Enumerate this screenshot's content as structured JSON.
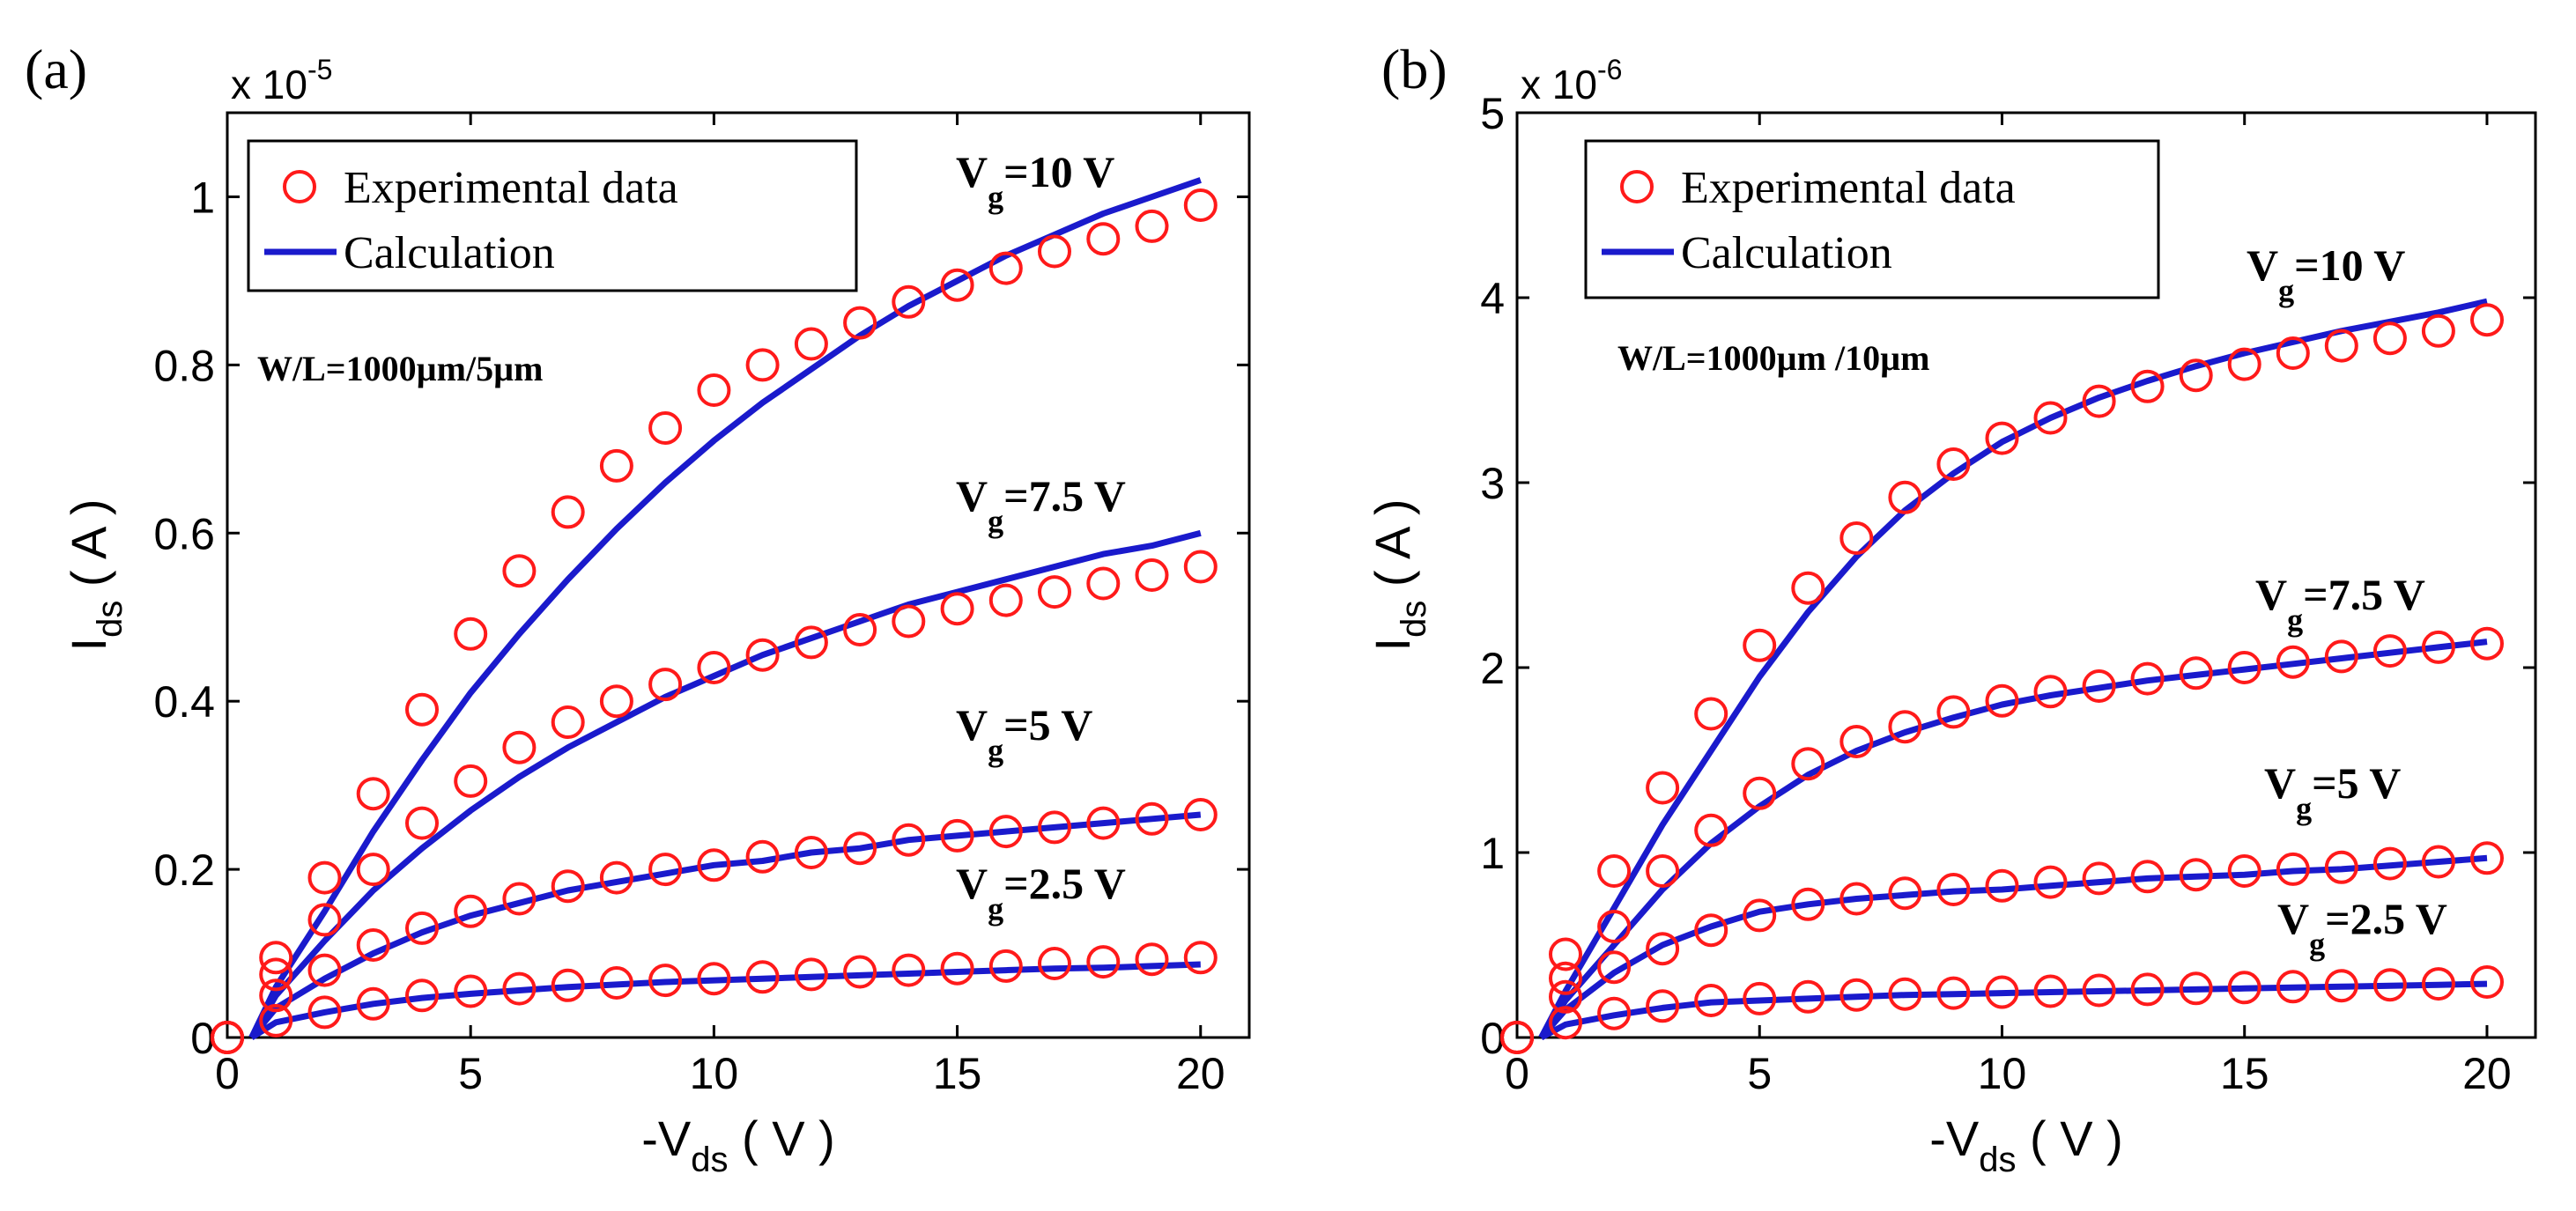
{
  "chart_data": [
    {
      "type": "scatter+line",
      "panel_label": "(a)",
      "ylabel": "I",
      "ylabel_sub": "ds",
      "ylabel_unit": " ( A )",
      "xlabel": "-V",
      "xlabel_sub": "ds",
      "xlabel_unit": " ( V )",
      "y_exponent_base": "x 10",
      "y_exponent_power": "-5",
      "xlim": [
        0,
        21
      ],
      "ylim": [
        0,
        1.1
      ],
      "xticks": [
        0,
        5,
        10,
        15,
        20
      ],
      "xtick_labels": [
        "0",
        "5",
        "10",
        "15",
        "20"
      ],
      "yticks": [
        0,
        0.2,
        0.4,
        0.6,
        0.8,
        1
      ],
      "ytick_labels": [
        "0",
        "0.2",
        "0.4",
        "0.6",
        "0.8",
        "1"
      ],
      "legend": {
        "position": "top-left",
        "entries": [
          "Experimental data",
          "Calculation"
        ]
      },
      "annotation": "W/L=1000µm/5µm",
      "colors": {
        "experimental": "#ff1a1a",
        "calculation": "#1a1acc"
      },
      "x": [
        0,
        1,
        2,
        3,
        4,
        5,
        6,
        7,
        8,
        9,
        10,
        11,
        12,
        13,
        14,
        15,
        16,
        17,
        18,
        19,
        20
      ],
      "series": [
        {
          "name": "Vg=10 V",
          "label_main": "V",
          "label_sub": "g",
          "label_rest": "=10 V",
          "experimental": [
            0,
            0.095,
            0.19,
            0.29,
            0.39,
            0.48,
            0.555,
            0.625,
            0.68,
            0.725,
            0.77,
            0.8,
            0.825,
            0.85,
            0.875,
            0.895,
            0.915,
            0.935,
            0.95,
            0.965,
            0.99
          ],
          "calculation_x": [
            0.5,
            1,
            2,
            3,
            4,
            5,
            6,
            7,
            8,
            9,
            10,
            11,
            12,
            13,
            14,
            15,
            16,
            17,
            18,
            19,
            20
          ],
          "calculation": [
            0,
            0.06,
            0.15,
            0.245,
            0.33,
            0.41,
            0.48,
            0.545,
            0.605,
            0.66,
            0.71,
            0.755,
            0.795,
            0.835,
            0.87,
            0.9,
            0.93,
            0.955,
            0.98,
            1.0,
            1.02
          ]
        },
        {
          "name": "Vg=7.5 V",
          "label_main": "V",
          "label_sub": "g",
          "label_rest": "=7.5 V",
          "experimental": [
            0,
            0.075,
            0.14,
            0.2,
            0.255,
            0.305,
            0.345,
            0.375,
            0.4,
            0.42,
            0.44,
            0.455,
            0.47,
            0.485,
            0.495,
            0.51,
            0.52,
            0.53,
            0.54,
            0.55,
            0.56
          ],
          "calculation_x": [
            0.5,
            1,
            2,
            3,
            4,
            5,
            6,
            7,
            8,
            9,
            10,
            11,
            12,
            13,
            14,
            15,
            16,
            17,
            18,
            19,
            20
          ],
          "calculation": [
            0,
            0.05,
            0.115,
            0.175,
            0.225,
            0.27,
            0.31,
            0.345,
            0.375,
            0.405,
            0.43,
            0.455,
            0.475,
            0.495,
            0.515,
            0.53,
            0.545,
            0.56,
            0.575,
            0.585,
            0.6
          ]
        },
        {
          "name": "Vg=5 V",
          "label_main": "V",
          "label_sub": "g",
          "label_rest": "=5 V",
          "experimental": [
            0,
            0.05,
            0.08,
            0.11,
            0.13,
            0.15,
            0.165,
            0.18,
            0.19,
            0.2,
            0.205,
            0.215,
            0.22,
            0.225,
            0.235,
            0.24,
            0.245,
            0.25,
            0.255,
            0.26,
            0.265
          ],
          "calculation_x": [
            0.5,
            1,
            2,
            3,
            4,
            5,
            6,
            7,
            8,
            9,
            10,
            11,
            12,
            13,
            14,
            15,
            16,
            17,
            18,
            19,
            20
          ],
          "calculation": [
            0,
            0.035,
            0.07,
            0.1,
            0.125,
            0.145,
            0.16,
            0.175,
            0.185,
            0.195,
            0.205,
            0.21,
            0.22,
            0.225,
            0.235,
            0.24,
            0.245,
            0.25,
            0.255,
            0.26,
            0.265
          ]
        },
        {
          "name": "Vg=2.5 V",
          "label_main": "V",
          "label_sub": "g",
          "label_rest": "=2.5 V",
          "experimental": [
            0,
            0.02,
            0.03,
            0.04,
            0.05,
            0.055,
            0.058,
            0.062,
            0.065,
            0.068,
            0.07,
            0.072,
            0.075,
            0.078,
            0.08,
            0.082,
            0.085,
            0.088,
            0.09,
            0.093,
            0.095
          ],
          "calculation_x": [
            0.5,
            1,
            2,
            3,
            4,
            5,
            6,
            7,
            8,
            9,
            10,
            11,
            12,
            13,
            14,
            15,
            16,
            17,
            18,
            19,
            20
          ],
          "calculation": [
            0,
            0.018,
            0.03,
            0.04,
            0.047,
            0.052,
            0.056,
            0.06,
            0.063,
            0.066,
            0.068,
            0.07,
            0.072,
            0.074,
            0.076,
            0.078,
            0.08,
            0.082,
            0.083,
            0.085,
            0.087
          ]
        }
      ]
    },
    {
      "type": "scatter+line",
      "panel_label": "(b)",
      "ylabel": "I",
      "ylabel_sub": "ds",
      "ylabel_unit": " ( A )",
      "xlabel": "-V",
      "xlabel_sub": "ds",
      "xlabel_unit": " ( V )",
      "y_exponent_base": "x 10",
      "y_exponent_power": "-6",
      "xlim": [
        0,
        21
      ],
      "ylim": [
        0,
        5
      ],
      "xticks": [
        0,
        5,
        10,
        15,
        20
      ],
      "xtick_labels": [
        "0",
        "5",
        "10",
        "15",
        "20"
      ],
      "yticks": [
        0,
        1,
        2,
        3,
        4,
        5
      ],
      "ytick_labels": [
        "0",
        "1",
        "2",
        "3",
        "4",
        "5"
      ],
      "legend": {
        "position": "top-left",
        "entries": [
          "Experimental data",
          "Calculation"
        ]
      },
      "annotation": "W/L=1000µm /10µm",
      "colors": {
        "experimental": "#ff1a1a",
        "calculation": "#1a1acc"
      },
      "x": [
        0,
        1,
        2,
        3,
        4,
        5,
        6,
        7,
        8,
        9,
        10,
        11,
        12,
        13,
        14,
        15,
        16,
        17,
        18,
        19,
        20
      ],
      "series": [
        {
          "name": "Vg=10 V",
          "label_main": "V",
          "label_sub": "g",
          "label_rest": "=10 V",
          "experimental": [
            0,
            0.45,
            0.9,
            1.35,
            1.75,
            2.12,
            2.43,
            2.7,
            2.92,
            3.1,
            3.24,
            3.35,
            3.44,
            3.52,
            3.58,
            3.64,
            3.7,
            3.74,
            3.78,
            3.82,
            3.88
          ],
          "calculation_x": [
            0.5,
            1,
            2,
            3,
            4,
            5,
            6,
            7,
            8,
            9,
            10,
            11,
            12,
            13,
            14,
            15,
            16,
            17,
            18,
            19,
            20
          ],
          "calculation": [
            0,
            0.25,
            0.7,
            1.15,
            1.55,
            1.95,
            2.3,
            2.6,
            2.85,
            3.05,
            3.22,
            3.35,
            3.46,
            3.55,
            3.63,
            3.7,
            3.76,
            3.82,
            3.87,
            3.92,
            3.98
          ]
        },
        {
          "name": "Vg=7.5 V",
          "label_main": "V",
          "label_sub": "g",
          "label_rest": "=7.5 V",
          "experimental": [
            0,
            0.32,
            0.6,
            0.9,
            1.12,
            1.32,
            1.48,
            1.6,
            1.68,
            1.76,
            1.82,
            1.87,
            1.9,
            1.94,
            1.97,
            2.0,
            2.03,
            2.06,
            2.09,
            2.11,
            2.13
          ],
          "calculation_x": [
            0.5,
            1,
            2,
            3,
            4,
            5,
            6,
            7,
            8,
            9,
            10,
            11,
            12,
            13,
            14,
            15,
            16,
            17,
            18,
            19,
            20
          ],
          "calculation": [
            0,
            0.2,
            0.5,
            0.8,
            1.05,
            1.25,
            1.42,
            1.55,
            1.65,
            1.73,
            1.8,
            1.85,
            1.89,
            1.93,
            1.96,
            1.99,
            2.02,
            2.05,
            2.08,
            2.11,
            2.14
          ]
        },
        {
          "name": "Vg=5 V",
          "label_main": "V",
          "label_sub": "g",
          "label_rest": "=5 V",
          "experimental": [
            0,
            0.22,
            0.38,
            0.48,
            0.58,
            0.66,
            0.72,
            0.75,
            0.78,
            0.8,
            0.82,
            0.84,
            0.86,
            0.87,
            0.88,
            0.9,
            0.91,
            0.92,
            0.94,
            0.95,
            0.97
          ],
          "calculation_x": [
            0.5,
            1,
            2,
            3,
            4,
            5,
            6,
            7,
            8,
            9,
            10,
            11,
            12,
            13,
            14,
            15,
            16,
            17,
            18,
            19,
            20
          ],
          "calculation": [
            0,
            0.15,
            0.35,
            0.5,
            0.6,
            0.68,
            0.72,
            0.75,
            0.77,
            0.79,
            0.8,
            0.82,
            0.84,
            0.86,
            0.87,
            0.88,
            0.9,
            0.91,
            0.93,
            0.95,
            0.97
          ]
        },
        {
          "name": "Vg=2.5 V",
          "label_main": "V",
          "label_sub": "g",
          "label_rest": "=2.5 V",
          "experimental": [
            0,
            0.08,
            0.13,
            0.17,
            0.2,
            0.21,
            0.22,
            0.23,
            0.235,
            0.24,
            0.245,
            0.25,
            0.255,
            0.26,
            0.265,
            0.27,
            0.275,
            0.28,
            0.285,
            0.29,
            0.3
          ],
          "calculation_x": [
            0.5,
            1,
            2,
            3,
            4,
            5,
            6,
            7,
            8,
            9,
            10,
            11,
            12,
            13,
            14,
            15,
            16,
            17,
            18,
            19,
            20
          ],
          "calculation": [
            0,
            0.07,
            0.12,
            0.16,
            0.19,
            0.2,
            0.21,
            0.22,
            0.23,
            0.235,
            0.24,
            0.245,
            0.25,
            0.255,
            0.26,
            0.265,
            0.27,
            0.275,
            0.28,
            0.285,
            0.29
          ]
        }
      ]
    }
  ]
}
